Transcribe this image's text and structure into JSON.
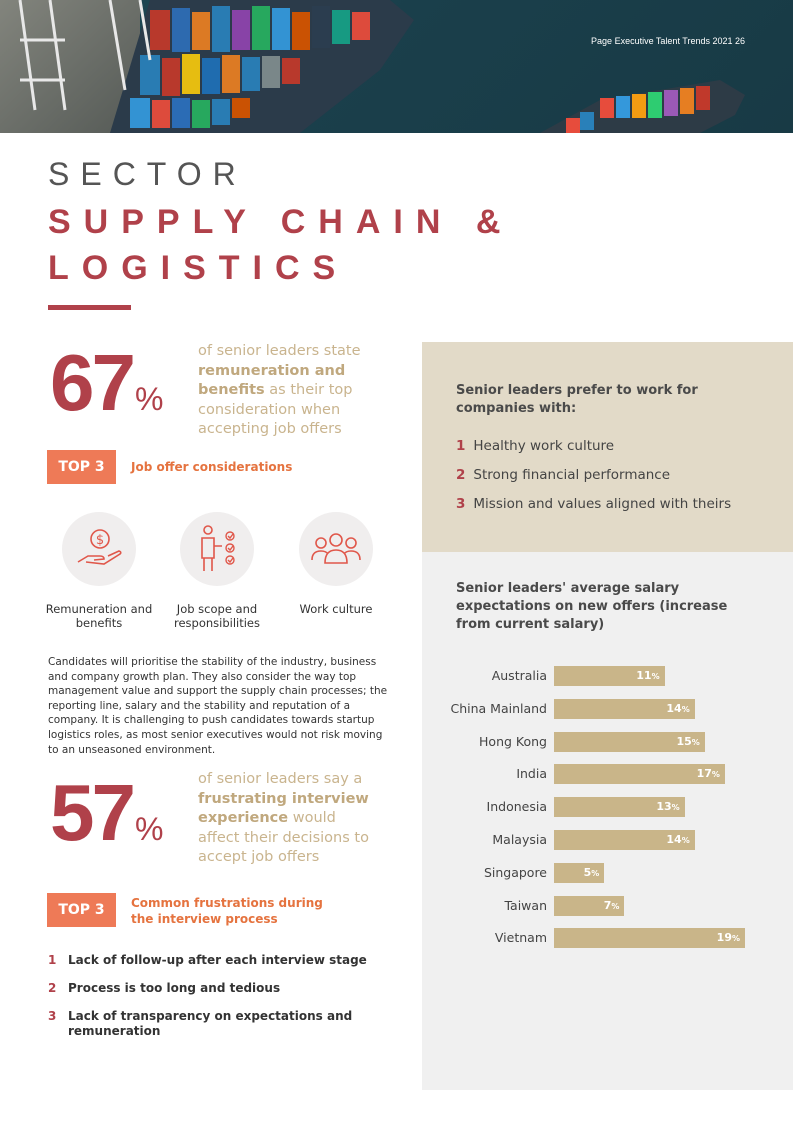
{
  "header": {
    "text": "Page Executive Talent Trends 2021  26"
  },
  "title": {
    "sector": "SECTOR",
    "line1": "SUPPLY CHAIN &",
    "line2": "LOGISTICS"
  },
  "stat1": {
    "number": "67",
    "percent_sign": "%",
    "pre": "of senior leaders state ",
    "highlight": "remuneration and benefits",
    "post": " as their top consideration when accepting job offers"
  },
  "top3_consider": {
    "badge": "TOP 3",
    "label": "Job offer considerations",
    "items": [
      {
        "icon": "money-hand-icon",
        "label": "Remuneration and benefits"
      },
      {
        "icon": "checklist-person-icon",
        "label": "Job scope and responsibilities"
      },
      {
        "icon": "people-group-icon",
        "label": "Work culture"
      }
    ]
  },
  "body_paragraph": "Candidates will prioritise the stability of the industry, business and company growth plan. They also consider the way top management value and support the supply chain processes; the reporting line, salary and the stability and reputation of a company. It is challenging to push candidates towards startup logistics roles, as most senior executives would not risk moving to an unseasoned environment.",
  "stat2": {
    "number": "57",
    "percent_sign": "%",
    "pre": "of senior leaders say a ",
    "highlight": "frustrating interview experience",
    "post": " would affect their decisions to accept job offers"
  },
  "top3_frustrations": {
    "badge": "TOP 3",
    "label": "Common frustrations during the interview process",
    "items": [
      {
        "num": "1",
        "text": "Lack of follow-up after each interview stage"
      },
      {
        "num": "2",
        "text": "Process is too long and tedious"
      },
      {
        "num": "3",
        "text": "Lack of transparency on expectations and remuneration"
      }
    ]
  },
  "preferences": {
    "heading": "Senior leaders prefer to work for companies with:",
    "items": [
      {
        "num": "1",
        "text": "Healthy work culture"
      },
      {
        "num": "2",
        "text": "Strong financial performance"
      },
      {
        "num": "3",
        "text": "Mission and values aligned with theirs"
      }
    ]
  },
  "colors": {
    "accent_red": "#b0414a",
    "accent_orange": "#ee7a57",
    "bar_tan": "#c9b589",
    "panel_beige": "#e2dac8"
  },
  "chart_data": {
    "type": "bar",
    "orientation": "horizontal",
    "title": "Senior leaders' average salary expectations on new offers (increase from current salary)",
    "categories": [
      "Australia",
      "China Mainland",
      "Hong Kong",
      "India",
      "Indonesia",
      "Malaysia",
      "Singapore",
      "Taiwan",
      "Vietnam"
    ],
    "values": [
      11,
      14,
      15,
      17,
      13,
      14,
      5,
      7,
      19
    ],
    "value_suffix": "%",
    "xlim": [
      0,
      19
    ]
  }
}
